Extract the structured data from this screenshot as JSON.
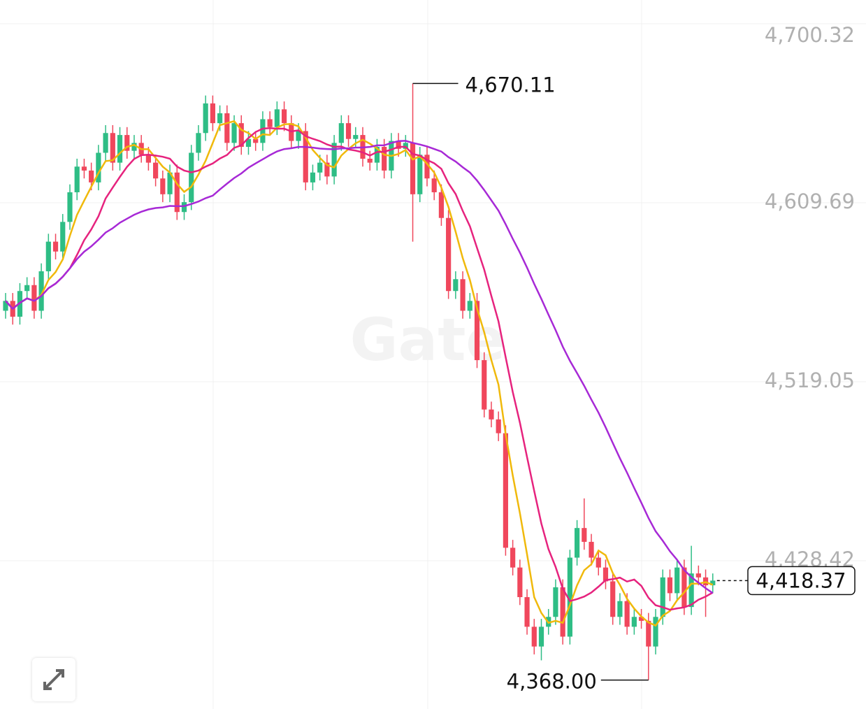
{
  "chart_data": {
    "type": "candlestick",
    "watermark": "Gate",
    "up_color": "#2ebd85",
    "down_color": "#f0475c",
    "ylim": [
      4353.36,
      4712.36
    ],
    "yticks": [
      {
        "value": 4700.32,
        "label": "4,700.32"
      },
      {
        "value": 4609.69,
        "label": "4,609.69"
      },
      {
        "value": 4519.05,
        "label": "4,519.05"
      },
      {
        "value": 4428.42,
        "label": "4,428.42"
      }
    ],
    "grid": true,
    "open": [
      4555,
      4560,
      4552,
      4565,
      4568,
      4555,
      4575,
      4590,
      4585,
      4600,
      4615,
      4628,
      4626,
      4620,
      4635,
      4645,
      4630,
      4644,
      4636,
      4640,
      4634,
      4630,
      4622,
      4614,
      4625,
      4605,
      4610,
      4635,
      4645,
      4660,
      4650,
      4655,
      4640,
      4650,
      4638,
      4642,
      4640,
      4652,
      4648,
      4657,
      4650,
      4641,
      4646,
      4620,
      4625,
      4630,
      4623,
      4640,
      4650,
      4642,
      4644,
      4632,
      4630,
      4638,
      4626,
      4641,
      4637,
      4640,
      4614,
      4634,
      4622,
      4615,
      4602,
      4565,
      4571,
      4555,
      4560,
      4530,
      4505,
      4500,
      4493,
      4435,
      4425,
      4410,
      4395,
      4385,
      4395,
      4400,
      4415,
      4390,
      4430,
      4445,
      4438,
      4430,
      4425,
      4418,
      4400,
      4408,
      4395,
      4400,
      4398,
      4385,
      4400,
      4420,
      4412,
      4425,
      4405,
      4422,
      4420,
      4416
    ],
    "high": [
      4564,
      4564,
      4569,
      4572,
      4572,
      4579,
      4594,
      4594,
      4604,
      4619,
      4632,
      4632,
      4630,
      4639,
      4649,
      4649,
      4648,
      4648,
      4644,
      4644,
      4638,
      4634,
      4626,
      4629,
      4629,
      4614,
      4639,
      4649,
      4664,
      4664,
      4659,
      4659,
      4654,
      4654,
      4646,
      4646,
      4656,
      4656,
      4661,
      4661,
      4654,
      4650,
      4650,
      4629,
      4634,
      4634,
      4644,
      4654,
      4654,
      4648,
      4648,
      4636,
      4642,
      4642,
      4645,
      4645,
      4644,
      4670.11,
      4638,
      4638,
      4626,
      4619,
      4606,
      4575,
      4575,
      4564,
      4564,
      4534,
      4509,
      4504,
      4497,
      4439,
      4429,
      4414,
      4399,
      4399,
      4404,
      4419,
      4419,
      4434,
      4449,
      4460,
      4442,
      4434,
      4429,
      4422,
      4412,
      4412,
      4404,
      4404,
      4402,
      4404,
      4424,
      4424,
      4429,
      4429,
      4436,
      4426,
      4424,
      4422
    ],
    "low": [
      4551,
      4548,
      4548,
      4561,
      4551,
      4551,
      4571,
      4581,
      4581,
      4596,
      4611,
      4622,
      4616,
      4616,
      4631,
      4626,
      4626,
      4632,
      4632,
      4630,
      4626,
      4618,
      4610,
      4610,
      4601,
      4601,
      4606,
      4631,
      4641,
      4646,
      4646,
      4636,
      4636,
      4634,
      4634,
      4636,
      4636,
      4644,
      4644,
      4646,
      4637,
      4637,
      4616,
      4616,
      4621,
      4619,
      4619,
      4636,
      4638,
      4638,
      4628,
      4626,
      4626,
      4622,
      4622,
      4633,
      4633,
      4590,
      4610,
      4618,
      4611,
      4598,
      4561,
      4561,
      4551,
      4551,
      4526,
      4501,
      4496,
      4489,
      4431,
      4421,
      4406,
      4391,
      4381,
      4378,
      4391,
      4396,
      4386,
      4386,
      4426,
      4434,
      4426,
      4421,
      4414,
      4396,
      4396,
      4391,
      4391,
      4394,
      4368,
      4381,
      4396,
      4408,
      4408,
      4401,
      4401,
      4416,
      4400,
      4412
    ],
    "close": [
      4560,
      4552,
      4565,
      4568,
      4555,
      4575,
      4590,
      4585,
      4600,
      4615,
      4628,
      4626,
      4620,
      4635,
      4645,
      4630,
      4644,
      4636,
      4640,
      4634,
      4630,
      4622,
      4614,
      4625,
      4605,
      4610,
      4635,
      4645,
      4660,
      4650,
      4655,
      4640,
      4650,
      4638,
      4642,
      4640,
      4652,
      4648,
      4657,
      4650,
      4641,
      4646,
      4620,
      4625,
      4630,
      4623,
      4640,
      4650,
      4642,
      4644,
      4632,
      4630,
      4638,
      4626,
      4641,
      4637,
      4640,
      4614,
      4634,
      4622,
      4615,
      4602,
      4565,
      4571,
      4555,
      4560,
      4530,
      4505,
      4500,
      4493,
      4435,
      4425,
      4410,
      4395,
      4385,
      4395,
      4400,
      4415,
      4390,
      4430,
      4445,
      4438,
      4430,
      4425,
      4418,
      4400,
      4408,
      4395,
      4400,
      4398,
      4385,
      4400,
      4420,
      4412,
      4425,
      4405,
      4422,
      4420,
      4416,
      4418.37
    ],
    "moving_averages": [
      {
        "period": 5,
        "color": "#f0b90b"
      },
      {
        "period": 10,
        "color": "#e6237e"
      },
      {
        "period": 30,
        "color": "#a729d6"
      }
    ],
    "annotations": [
      {
        "index": 57,
        "value": 4670.11,
        "label": "4,670.11"
      },
      {
        "index": 90,
        "value": 4368.0,
        "label": "4,368.00"
      }
    ],
    "last_price": {
      "value": 4418.37,
      "label": "4,418.37"
    }
  }
}
